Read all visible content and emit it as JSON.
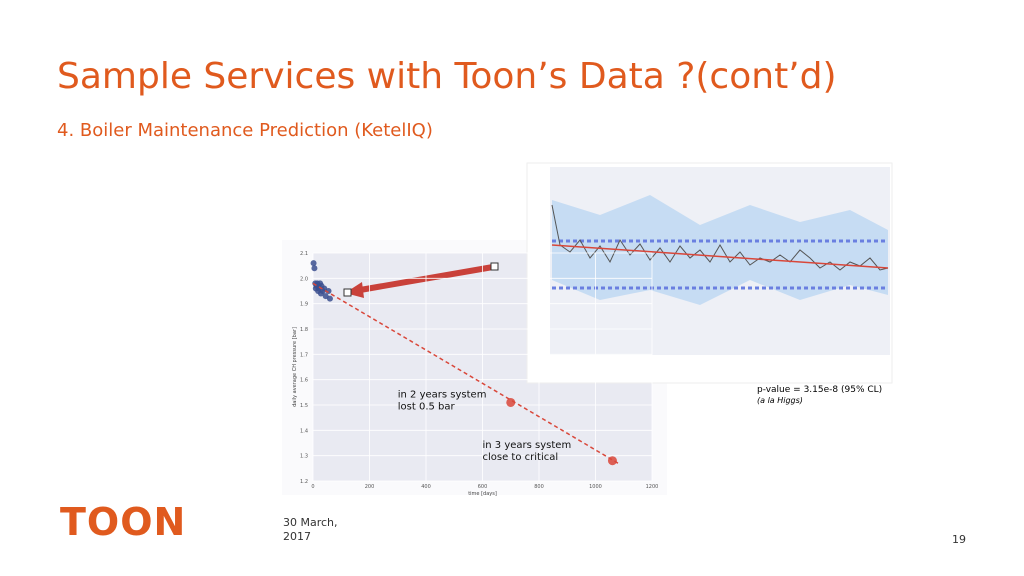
{
  "header": {
    "title": "Sample Services with Toon’s Data ?(cont’d)",
    "subtitle": "4. Boiler Maintenance Prediction (KetelIQ)"
  },
  "footer": {
    "logo": "TOON",
    "date": "30 March, 2017",
    "page": "19"
  },
  "inset": {
    "stat": "p-value = 3.15e-8 (95% CL)",
    "note": "(a la Higgs)"
  },
  "chart_data": {
    "type": "scatter",
    "xlabel": "time [days]",
    "ylabel": "daily average CH pressure [bar]",
    "xlim": [
      0,
      1200
    ],
    "ylim": [
      1.2,
      2.1
    ],
    "xticks": [
      0,
      200,
      400,
      600,
      800,
      1000,
      1200
    ],
    "yticks": [
      1.2,
      1.3,
      1.4,
      1.5,
      1.6,
      1.7,
      1.8,
      {
        "value": 1.9,
        "label": "1.9"
      },
      {
        "value": 2.0,
        "label": "2.0"
      },
      2.1
    ],
    "series": [
      {
        "color": "#3b4f8f",
        "x": [
          2,
          5,
          8,
          10,
          12,
          15,
          18,
          20,
          22,
          25,
          28,
          30,
          35,
          40,
          45,
          55,
          60
        ],
        "values": [
          2.06,
          2.04,
          1.98,
          1.96,
          1.97,
          1.98,
          1.95,
          1.97,
          1.96,
          1.98,
          1.94,
          1.97,
          1.95,
          1.96,
          1.93,
          1.95,
          1.92
        ]
      },
      {
        "color": "#d9473a",
        "x": [
          700,
          1060
        ],
        "values": [
          1.51,
          1.28
        ]
      },
      {
        "type": "line",
        "style": "dashed",
        "color": "#d9473a",
        "x": [
          0,
          1080
        ],
        "values": [
          1.98,
          1.27
        ]
      }
    ],
    "annotations": [
      {
        "text": "in 2 years system lost 0.5 bar",
        "x": 300,
        "y": 1.53
      },
      {
        "text": "in 3 years system close to critical",
        "x": 600,
        "y": 1.33
      }
    ]
  }
}
